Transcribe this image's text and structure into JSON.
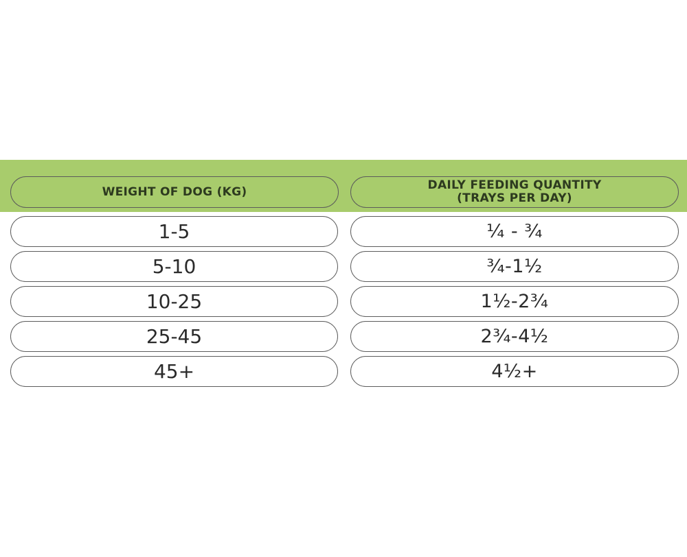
{
  "table": {
    "headers": {
      "weight": "WEIGHT OF DOG (KG)",
      "quantity_line1": "DAILY FEEDING QUANTITY",
      "quantity_line2": "(TRAYS PER DAY)"
    },
    "rows": [
      {
        "weight": "1-5",
        "quantity": "¼ - ¾"
      },
      {
        "weight": "5-10",
        "quantity": "¾-1½"
      },
      {
        "weight": "10-25",
        "quantity": "1½-2¾"
      },
      {
        "weight": "25-45",
        "quantity": "2¾-4½"
      },
      {
        "weight": "45+",
        "quantity": "4½+"
      }
    ]
  },
  "colors": {
    "header_green": "#a8cc6c",
    "border": "#5b5b5b",
    "header_text": "#2d3a1f"
  }
}
